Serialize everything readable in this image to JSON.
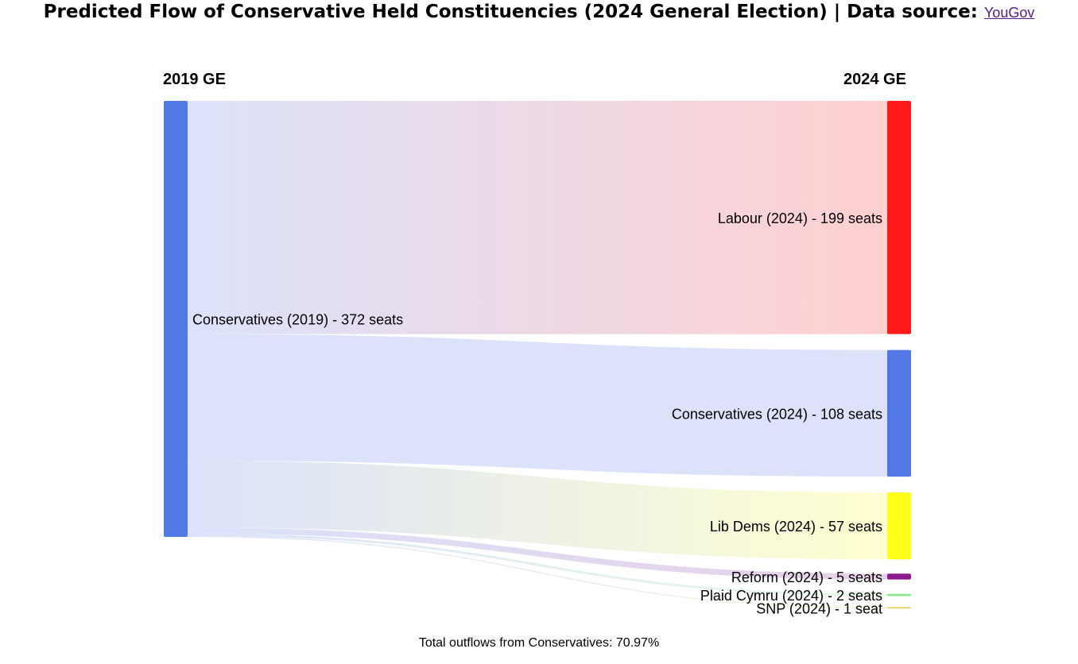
{
  "title": {
    "text": "Predicted Flow of Conservative Held Constituencies (2024 General Election) | Data source:",
    "link_text": "YouGov"
  },
  "columns": {
    "left": "2019 GE",
    "right": "2024 GE"
  },
  "footer": "Total outflows from Conservatives: 70.97%",
  "chart_data": {
    "type": "sankey",
    "source": {
      "label": "Conservatives (2019) - 372 seats",
      "seats": 372,
      "color": "#5278e6"
    },
    "targets": [
      {
        "label": "Labour (2024) - 199 seats",
        "seats": 199,
        "color": "#ff1a1a"
      },
      {
        "label": "Conservatives (2024) - 108 seats",
        "seats": 108,
        "color": "#5278e6"
      },
      {
        "label": "Lib Dems (2024) - 57 seats",
        "seats": 57,
        "color": "#ffff1a"
      },
      {
        "label": "Reform (2024) - 5 seats",
        "seats": 5,
        "color": "#8b1a8b"
      },
      {
        "label": "Plaid Cymru (2024) - 2 seats",
        "seats": 2,
        "color": "#8ee68e"
      },
      {
        "label": "SNP (2024) - 1 seat",
        "seats": 1,
        "color": "#e6c84a"
      }
    ]
  }
}
